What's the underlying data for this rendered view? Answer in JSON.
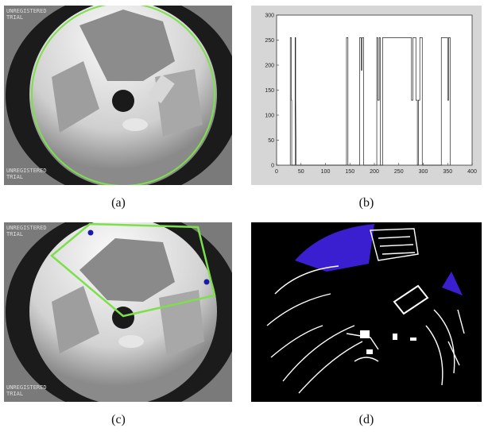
{
  "captions": {
    "a": "(a)",
    "b": "(b)",
    "c": "(c)",
    "d": "(d)"
  },
  "watermark": {
    "line1": "UNREGISTERED",
    "line2": "TRIAL"
  },
  "colors": {
    "segment_line": "#7ce04a",
    "mask_fill": "#3a1fd0",
    "marker": "#1a1aa8"
  },
  "chart_data": {
    "type": "line",
    "title": "",
    "xlabel": "",
    "ylabel": "",
    "xlim": [
      0,
      400
    ],
    "ylim": [
      0,
      300
    ],
    "xticks": [
      0,
      50,
      100,
      150,
      200,
      250,
      300,
      350,
      400
    ],
    "yticks": [
      0,
      50,
      100,
      150,
      200,
      250,
      300
    ],
    "grid": false,
    "series": [
      {
        "points": [
          [
            28,
            0
          ],
          [
            28,
            255
          ],
          [
            30,
            255
          ],
          [
            30,
            130
          ],
          [
            31,
            130
          ],
          [
            31,
            0
          ],
          [
            38,
            0
          ],
          [
            38,
            255
          ],
          [
            39,
            255
          ],
          [
            39,
            130
          ],
          [
            40,
            0
          ],
          [
            143,
            0
          ],
          [
            143,
            255
          ],
          [
            146,
            255
          ],
          [
            146,
            0
          ],
          [
            170,
            0
          ],
          [
            170,
            255
          ],
          [
            173,
            255
          ],
          [
            173,
            190
          ],
          [
            175,
            190
          ],
          [
            175,
            255
          ],
          [
            178,
            255
          ],
          [
            178,
            0
          ],
          [
            205,
            0
          ],
          [
            205,
            255
          ],
          [
            207,
            255
          ],
          [
            207,
            130
          ],
          [
            210,
            130
          ],
          [
            210,
            255
          ],
          [
            212,
            255
          ],
          [
            212,
            0
          ],
          [
            217,
            0
          ],
          [
            217,
            255
          ],
          [
            276,
            255
          ],
          [
            276,
            130
          ],
          [
            279,
            130
          ],
          [
            279,
            255
          ],
          [
            285,
            255
          ],
          [
            285,
            130
          ],
          [
            288,
            130
          ],
          [
            288,
            0
          ],
          [
            290,
            0
          ],
          [
            290,
            130
          ],
          [
            293,
            130
          ],
          [
            293,
            255
          ],
          [
            298,
            255
          ],
          [
            298,
            0
          ],
          [
            337,
            0
          ],
          [
            337,
            255
          ],
          [
            350,
            255
          ],
          [
            350,
            130
          ],
          [
            352,
            130
          ],
          [
            352,
            255
          ],
          [
            355,
            255
          ],
          [
            355,
            0
          ]
        ]
      }
    ]
  }
}
